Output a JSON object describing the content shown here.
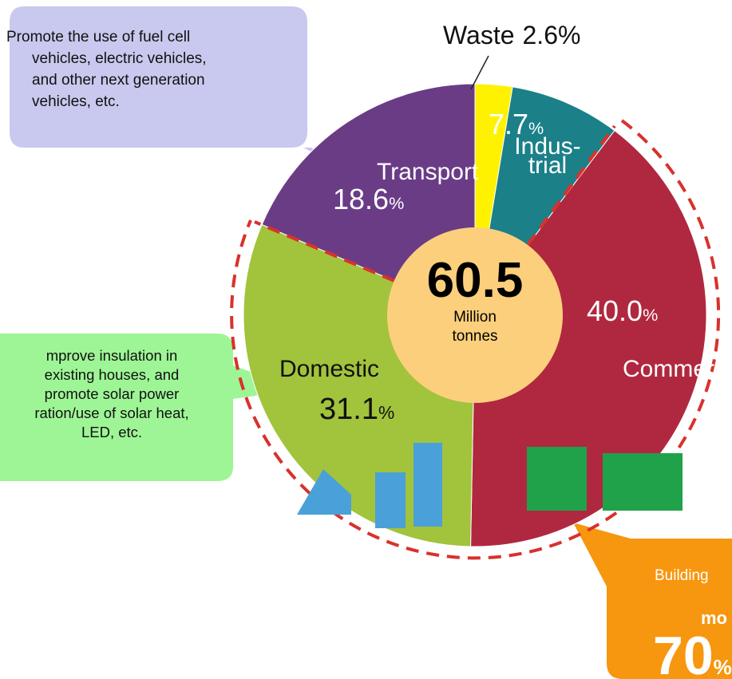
{
  "chart_data": {
    "type": "pie",
    "categories": [
      "Waste",
      "Indus-trial",
      "Commercial",
      "Domestic",
      "Transport"
    ],
    "values": [
      2.6,
      7.7,
      40.0,
      31.1,
      18.6
    ],
    "value_labels": [
      "2.6",
      "7.7",
      "40.0",
      "31.1",
      "18.6"
    ],
    "unit": "%",
    "colors": [
      "#fff200",
      "#1b8088",
      "#b0283f",
      "#a2c33c",
      "#6a3c86"
    ],
    "center_value": 60.5,
    "center_label": [
      "Million",
      "tonnes"
    ],
    "annotations": {
      "transport": [
        "Promote the use of fuel cell",
        "vehicles, electric vehicles,",
        "and other next generation",
        "vehicles, etc."
      ],
      "domestic": [
        "mprove insulation in",
        "existing houses, and",
        "promote solar power",
        "ration/use of solar heat,",
        "LED, etc."
      ],
      "buildings": [
        "Building",
        "mo",
        "70",
        "%"
      ]
    }
  }
}
